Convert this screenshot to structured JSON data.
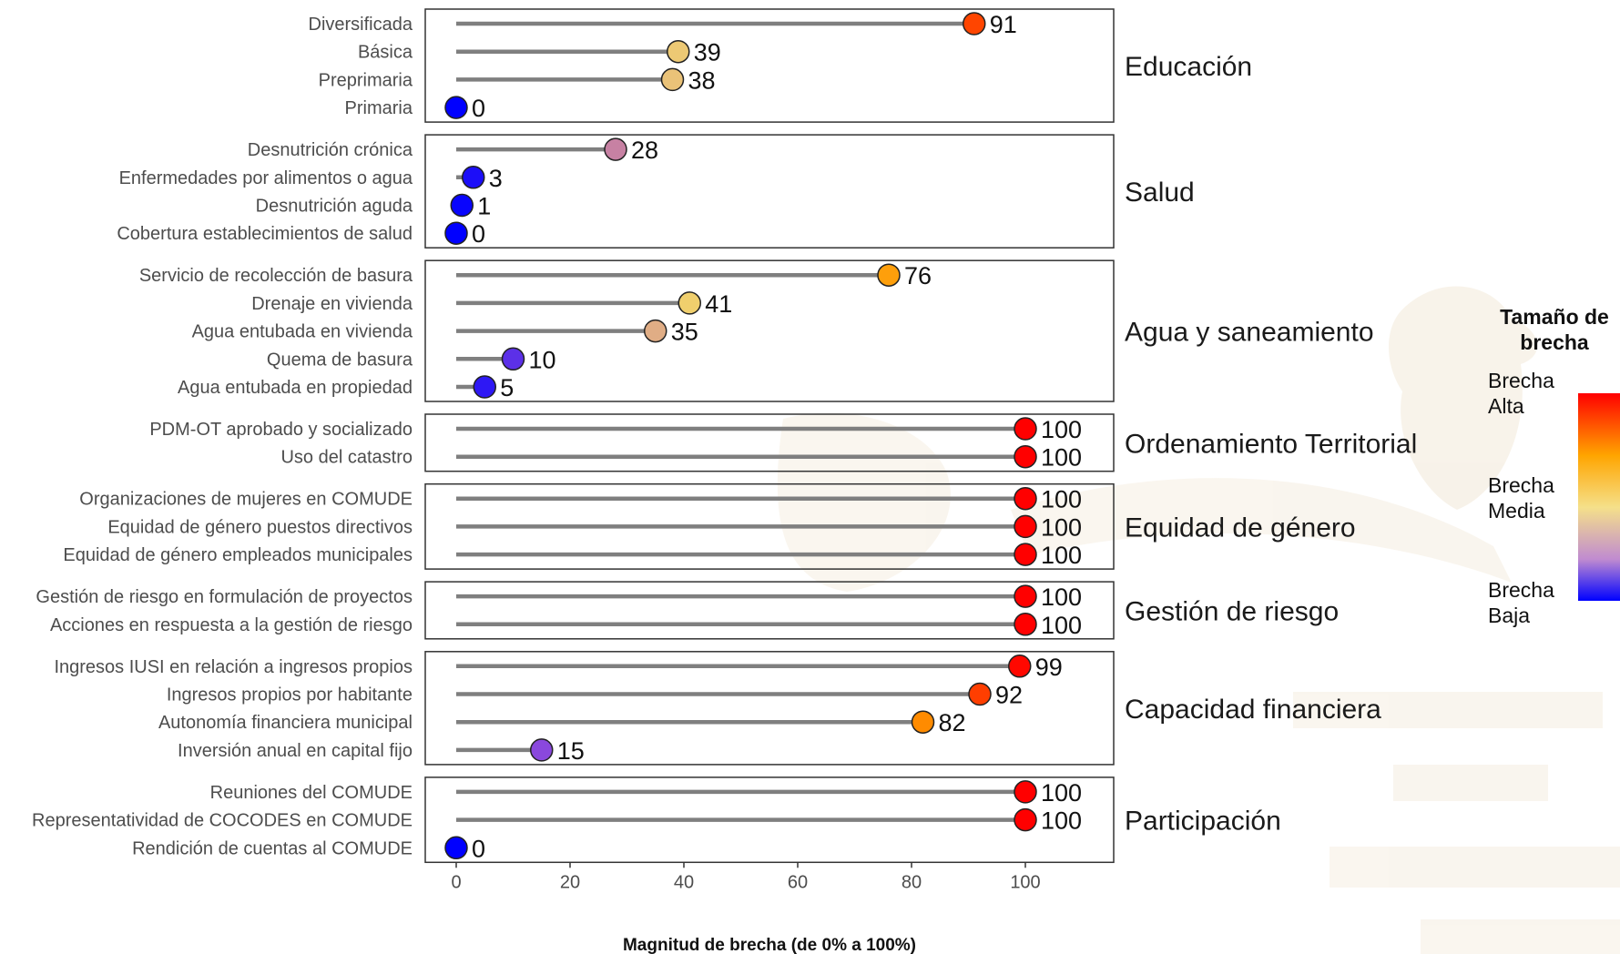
{
  "chart_data": {
    "type": "lollipop",
    "title": "",
    "xlabel": "Magnitud de brecha (de 0% a 100%)",
    "xlim": [
      0,
      115
    ],
    "xticks": [
      0,
      20,
      40,
      60,
      80,
      100
    ],
    "legend": {
      "title_lines": [
        "Tamaño de",
        "brecha"
      ],
      "high_lines": [
        "Brecha",
        "Alta"
      ],
      "mid_lines": [
        "Brecha",
        "Media"
      ],
      "low_lines": [
        "Brecha",
        "Baja"
      ],
      "placement": "right",
      "colors": {
        "high": "#ff0000",
        "mid": "#ffa500",
        "light": "#f0e0a0",
        "low": "#0000ff"
      }
    },
    "facets": [
      {
        "name": "Educación",
        "items": [
          {
            "label": "Diversificada",
            "value": 91
          },
          {
            "label": "Básica",
            "value": 39
          },
          {
            "label": "Preprimaria",
            "value": 38
          },
          {
            "label": "Primaria",
            "value": 0
          }
        ]
      },
      {
        "name": "Salud",
        "items": [
          {
            "label": "Desnutrición crónica",
            "value": 28
          },
          {
            "label": "Enfermedades por alimentos o agua",
            "value": 3
          },
          {
            "label": "Desnutrición aguda",
            "value": 1
          },
          {
            "label": "Cobertura establecimientos de salud",
            "value": 0
          }
        ]
      },
      {
        "name": "Agua y saneamiento",
        "items": [
          {
            "label": "Servicio de recolección de basura",
            "value": 76
          },
          {
            "label": "Drenaje en vivienda",
            "value": 41
          },
          {
            "label": "Agua entubada en vivienda",
            "value": 35
          },
          {
            "label": "Quema de basura",
            "value": 10
          },
          {
            "label": "Agua entubada en propiedad",
            "value": 5
          }
        ]
      },
      {
        "name": "Ordenamiento Territorial",
        "items": [
          {
            "label": "PDM-OT aprobado y socializado",
            "value": 100
          },
          {
            "label": "Uso del catastro",
            "value": 100
          }
        ]
      },
      {
        "name": "Equidad de género",
        "items": [
          {
            "label": "Organizaciones de mujeres en COMUDE",
            "value": 100
          },
          {
            "label": "Equidad de género puestos directivos",
            "value": 100
          },
          {
            "label": "Equidad de género empleados municipales",
            "value": 100
          }
        ]
      },
      {
        "name": "Gestión de riesgo",
        "items": [
          {
            "label": "Gestión de riesgo en formulación de proyectos",
            "value": 100
          },
          {
            "label": "Acciones en respuesta a la gestión de riesgo",
            "value": 100
          }
        ]
      },
      {
        "name": "Capacidad financiera",
        "items": [
          {
            "label": "Ingresos IUSI en relación a ingresos propios",
            "value": 99
          },
          {
            "label": "Ingresos propios por habitante",
            "value": 92
          },
          {
            "label": "Autonomía financiera municipal",
            "value": 82
          },
          {
            "label": "Inversión anual en capital fijo",
            "value": 15
          }
        ]
      },
      {
        "name": "Participación",
        "items": [
          {
            "label": "Reuniones del COMUDE",
            "value": 100
          },
          {
            "label": "Representatividad de COCODES en COMUDE",
            "value": 100
          },
          {
            "label": "Rendición de cuentas al COMUDE",
            "value": 0
          }
        ]
      }
    ]
  }
}
